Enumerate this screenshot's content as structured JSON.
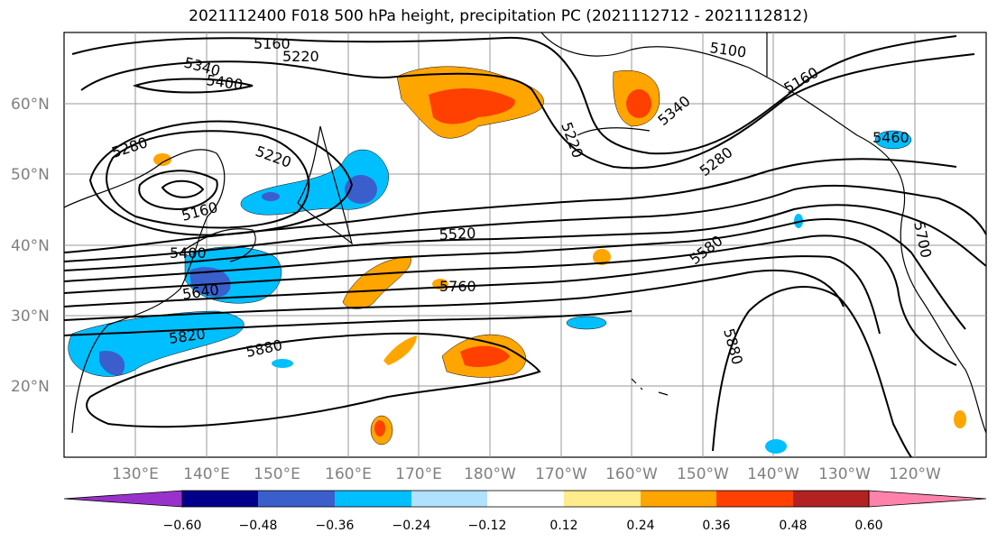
{
  "title": "2021112400 F018 500 hPa height, precipitation PC (2021112712 - 2021112812)",
  "lat_labels": [
    "60°N",
    "50°N",
    "40°N",
    "30°N",
    "20°N"
  ],
  "lon_labels": [
    "130°E",
    "140°E",
    "150°E",
    "160°E",
    "170°E",
    "180°W",
    "170°W",
    "160°W",
    "150°W",
    "140°W",
    "130°W",
    "120°W"
  ],
  "contour_labels": [
    "5160",
    "5220",
    "5340",
    "5400",
    "5100",
    "5160",
    "5280",
    "5220",
    "5220",
    "5160",
    "5280",
    "5460",
    "5400",
    "5520",
    "5580",
    "5640",
    "5700",
    "5760",
    "5820",
    "5880",
    "5880",
    "5340"
  ],
  "colorbar": {
    "ticks": [
      "−0.60",
      "−0.48",
      "−0.36",
      "−0.24",
      "−0.12",
      "0.12",
      "0.24",
      "0.36",
      "0.48",
      "0.60"
    ],
    "colors": [
      "#9932cc",
      "#00008b",
      "#3a5fcd",
      "#00bfff",
      "#b0e2ff",
      "#ffffff",
      "#ffec8b",
      "#ffa500",
      "#ff4000",
      "#b22222",
      "#ff82ab"
    ]
  }
}
